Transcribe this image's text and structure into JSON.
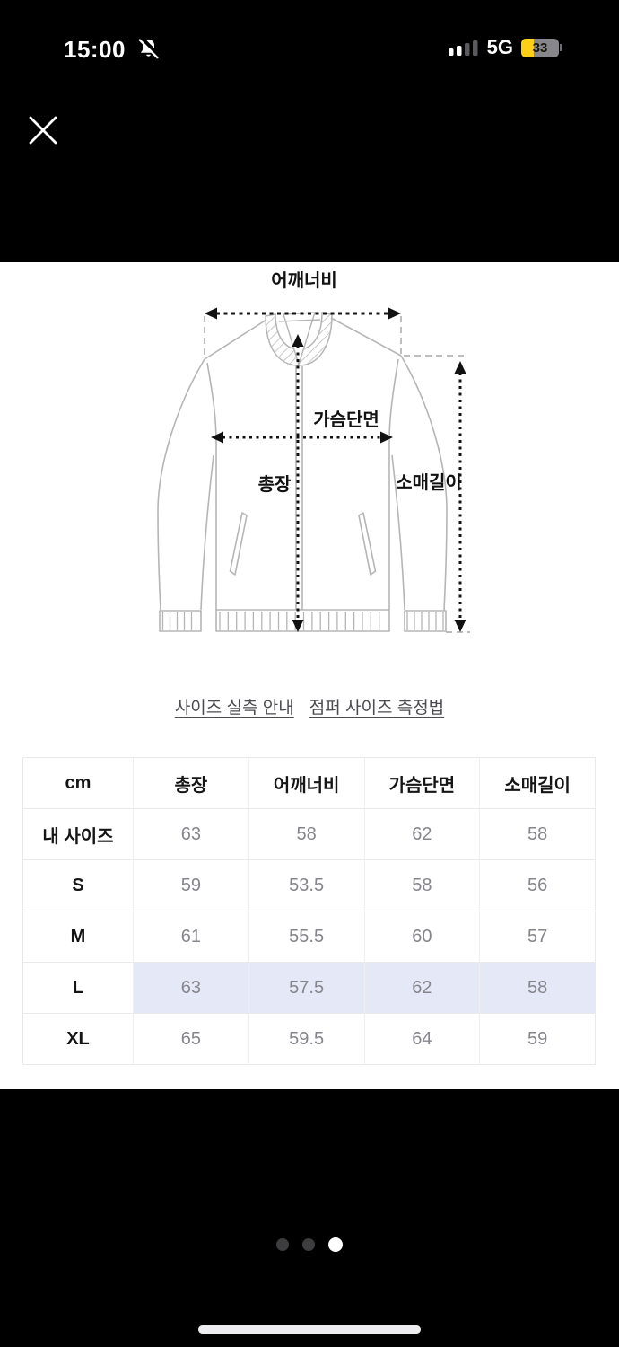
{
  "status_bar": {
    "time": "15:00",
    "network": "5G",
    "battery_level": "33",
    "signal_bars_active": 2,
    "signal_bars_total": 4
  },
  "diagram": {
    "labels": {
      "shoulder_width": "어깨너비",
      "chest_width": "가슴단면",
      "total_length": "총장",
      "sleeve_length": "소매길이"
    }
  },
  "links": [
    {
      "label": "사이즈 실측 안내"
    },
    {
      "label": "점퍼 사이즈 측정법"
    }
  ],
  "size_table": {
    "columns": [
      "cm",
      "총장",
      "어깨너비",
      "가슴단면",
      "소매길이"
    ],
    "rows": [
      {
        "label": "내 사이즈",
        "values": [
          "63",
          "58",
          "62",
          "58"
        ],
        "highlight": false
      },
      {
        "label": "S",
        "values": [
          "59",
          "53.5",
          "58",
          "56"
        ],
        "highlight": false
      },
      {
        "label": "M",
        "values": [
          "61",
          "55.5",
          "60",
          "57"
        ],
        "highlight": false
      },
      {
        "label": "L",
        "values": [
          "63",
          "57.5",
          "62",
          "58"
        ],
        "highlight": true
      },
      {
        "label": "XL",
        "values": [
          "65",
          "59.5",
          "64",
          "59"
        ],
        "highlight": false
      }
    ],
    "highlighted_row": "L",
    "highlight_color": "#e5e8f6"
  },
  "pagination": {
    "dots_total": 3,
    "active_index": 2
  },
  "colors": {
    "page_bg": "#000000",
    "panel_bg": "#ffffff",
    "battery_fill": "#fdd017",
    "highlight": "#e5e8f6",
    "dot_active": "#ffffff",
    "dot_inactive": "#3d3d3f"
  }
}
